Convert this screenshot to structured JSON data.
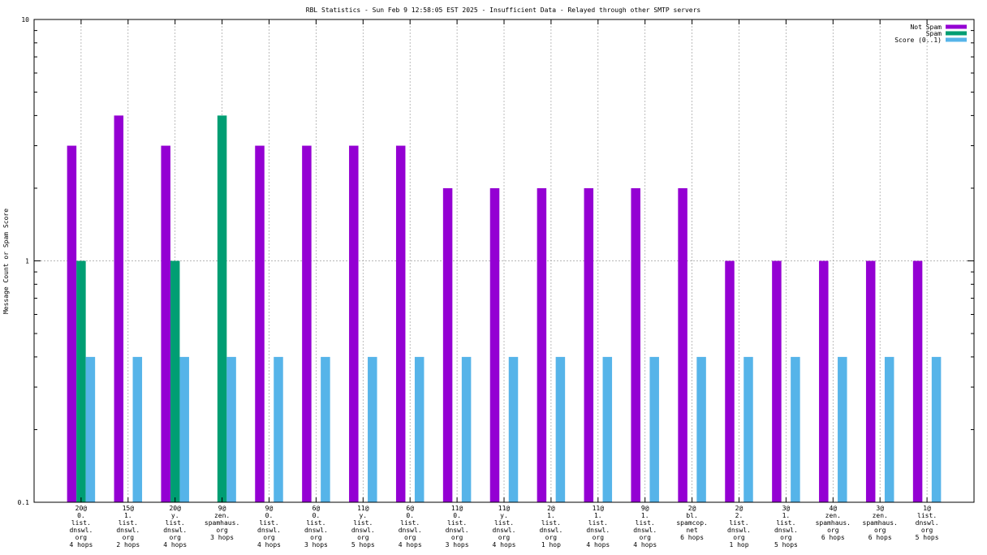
{
  "chart_data": {
    "type": "bar",
    "title": "RBL Statistics - Sun Feb  9 12:58:05 EST 2025 - Insufficient Data - Relayed through other SMTP servers",
    "ylabel": "Message Count or Spam Score",
    "xlabel": "",
    "yscale": "log",
    "ylim": [
      0.1,
      10
    ],
    "yticks": [
      "0.1",
      "1",
      "10"
    ],
    "grid": true,
    "legend_position": "top-right",
    "categories": [
      [
        "20@",
        "0.",
        "list.",
        "dnswl.",
        "org",
        "4 hops"
      ],
      [
        "15@",
        "1.",
        "list.",
        "dnswl.",
        "org",
        "2 hops"
      ],
      [
        "20@",
        "y.",
        "list.",
        "dnswl.",
        "org",
        "4 hops"
      ],
      [
        "9@",
        "zen.",
        "spamhaus.",
        "org",
        "3 hops"
      ],
      [
        "9@",
        "0.",
        "list.",
        "dnswl.",
        "org",
        "4 hops"
      ],
      [
        "6@",
        "0.",
        "list.",
        "dnswl.",
        "org",
        "3 hops"
      ],
      [
        "11@",
        "y.",
        "list.",
        "dnswl.",
        "org",
        "5 hops"
      ],
      [
        "6@",
        "0.",
        "list.",
        "dnswl.",
        "org",
        "4 hops"
      ],
      [
        "11@",
        "0.",
        "list.",
        "dnswl.",
        "org",
        "3 hops"
      ],
      [
        "11@",
        "y.",
        "list.",
        "dnswl.",
        "org",
        "4 hops"
      ],
      [
        "2@",
        "1.",
        "list.",
        "dnswl.",
        "org",
        "1 hop"
      ],
      [
        "11@",
        "1.",
        "list.",
        "dnswl.",
        "org",
        "4 hops"
      ],
      [
        "9@",
        "1.",
        "list.",
        "dnswl.",
        "org",
        "4 hops"
      ],
      [
        "2@",
        "bl.",
        "spamcop.",
        "net",
        "6 hops"
      ],
      [
        "2@",
        "2.",
        "list.",
        "dnswl.",
        "org",
        "1 hop"
      ],
      [
        "3@",
        "1.",
        "list.",
        "dnswl.",
        "org",
        "5 hops"
      ],
      [
        "4@",
        "zen.",
        "spamhaus.",
        "org",
        "6 hops"
      ],
      [
        "3@",
        "zen.",
        "spamhaus.",
        "org",
        "6 hops"
      ],
      [
        "1@",
        "list.",
        "dnswl.",
        "org",
        "5 hops"
      ]
    ],
    "series": [
      {
        "name": "Not Spam",
        "color": "#9400d3",
        "values": [
          3,
          4,
          3,
          null,
          3,
          3,
          3,
          3,
          2,
          2,
          2,
          2,
          2,
          2,
          1,
          1,
          1,
          1,
          1
        ]
      },
      {
        "name": "Spam",
        "color": "#009e73",
        "values": [
          1,
          null,
          1,
          4,
          null,
          null,
          null,
          null,
          null,
          null,
          null,
          null,
          null,
          null,
          null,
          null,
          null,
          null,
          null
        ]
      },
      {
        "name": "Score (0..1)",
        "color": "#56b4e9",
        "values": [
          0.4,
          0.4,
          0.4,
          0.4,
          0.4,
          0.4,
          0.4,
          0.4,
          0.4,
          0.4,
          0.4,
          0.4,
          0.4,
          0.4,
          0.4,
          0.4,
          0.4,
          0.4,
          0.4
        ]
      }
    ]
  }
}
